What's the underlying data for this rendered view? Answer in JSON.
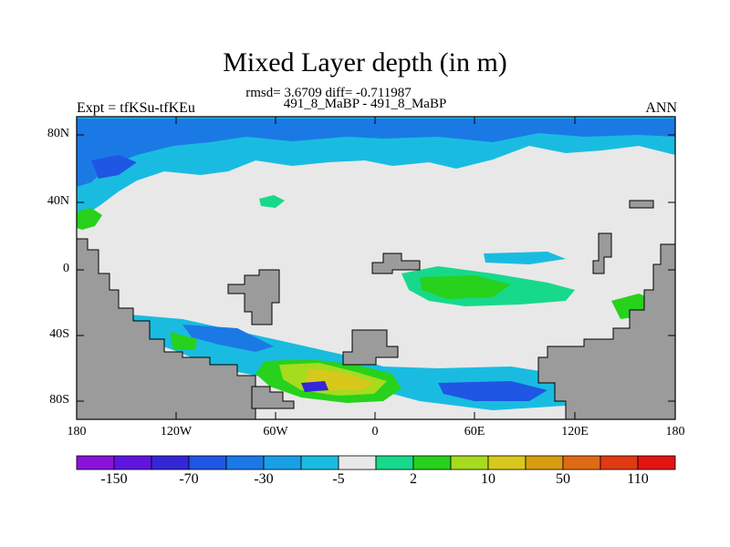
{
  "title": "Mixed Layer depth (in m)",
  "stats_line": "rmsd= 3.6709 diff= -0.711987",
  "cases_line": "491_8_MaBP - 491_8_MaBP",
  "expt_label": "Expt = tfKSu-tfKEu",
  "period_label": "ANN",
  "lat_ticks": [
    "80N",
    "40N",
    "0",
    "40S",
    "80S"
  ],
  "lon_ticks": [
    "180",
    "120W",
    "60W",
    "0",
    "60E",
    "120E",
    "180"
  ],
  "colorbar": {
    "colors": [
      "#8a12d9",
      "#6014e0",
      "#3526d6",
      "#1f56e3",
      "#1b79e6",
      "#199fe6",
      "#19bce0",
      "#e8e8e8",
      "#17d98c",
      "#27d11c",
      "#a6db1e",
      "#d9c81c",
      "#d99c10",
      "#e06a14",
      "#e03a12",
      "#e31414"
    ],
    "labels": [
      "-150",
      "-70",
      "-30",
      "-5",
      "2",
      "10",
      "50",
      "110"
    ]
  },
  "colors": {
    "land": "#9b9b9b",
    "ocean_neutral": "#e8e8e8"
  }
}
